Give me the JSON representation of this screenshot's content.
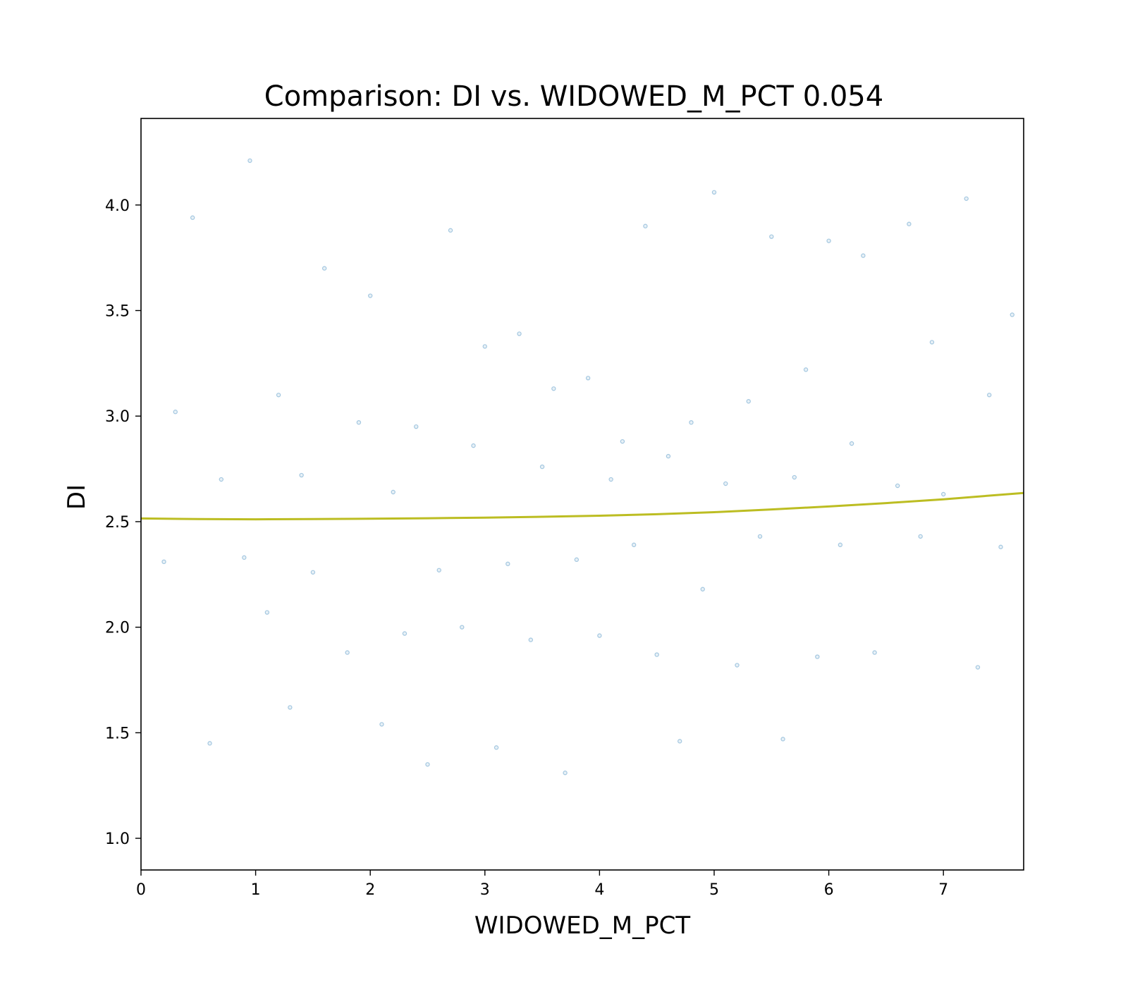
{
  "chart_data": {
    "type": "scatter",
    "title": "Comparison:  DI  vs.  WIDOWED_M_PCT  0.054",
    "xlabel": "WIDOWED_M_PCT",
    "ylabel": "DI",
    "xlim": [
      0,
      7.7
    ],
    "ylim": [
      0.85,
      4.41
    ],
    "x_ticks": [
      0,
      1,
      2,
      3,
      4,
      5,
      6,
      7
    ],
    "y_ticks": [
      1.0,
      1.5,
      2.0,
      2.5,
      3.0,
      3.5,
      4.0
    ],
    "x_tick_labels": [
      "0",
      "1",
      "2",
      "3",
      "4",
      "5",
      "6",
      "7"
    ],
    "y_tick_labels": [
      "1.0",
      "1.5",
      "2.0",
      "2.5",
      "3.0",
      "3.5",
      "4.0"
    ],
    "grid": false,
    "legend": "none",
    "colors": {
      "points": "#1f77b4",
      "trend": "#bcbd22"
    },
    "trend_line": {
      "x": [
        0,
        0.5,
        1,
        1.5,
        2,
        2.5,
        3,
        3.5,
        4,
        4.5,
        5,
        5.5,
        6,
        6.5,
        7,
        7.7
      ],
      "y": [
        2.515,
        2.512,
        2.511,
        2.512,
        2.514,
        2.516,
        2.519,
        2.523,
        2.528,
        2.535,
        2.545,
        2.558,
        2.572,
        2.588,
        2.606,
        2.636
      ]
    },
    "series": [
      {
        "x": [
          0.45,
          0.95,
          1.6,
          2.0,
          2.7,
          3.3,
          3.9,
          4.4,
          5.0,
          5.5,
          6.0,
          6.3,
          6.7,
          7.2,
          7.6,
          0.3,
          1.2,
          1.9,
          2.4,
          3.0,
          3.6,
          4.2,
          4.8,
          5.3,
          5.8,
          6.2,
          6.9,
          7.4,
          0.7,
          1.4,
          2.2,
          2.9,
          3.5,
          4.1,
          4.6,
          5.1,
          5.7,
          6.6,
          7.0,
          0.2,
          0.9,
          1.5,
          2.6,
          3.2,
          3.8,
          4.3,
          4.9,
          5.4,
          6.1,
          6.8,
          7.5,
          1.1,
          1.8,
          2.3,
          2.8,
          3.4,
          4.0,
          4.5,
          5.2,
          5.9,
          0.6,
          1.3,
          2.1,
          2.5,
          3.1,
          3.7,
          4.7,
          5.6,
          6.4,
          7.3
        ],
        "y": [
          3.94,
          4.21,
          3.7,
          3.57,
          3.88,
          3.39,
          3.18,
          3.9,
          4.06,
          3.85,
          3.83,
          3.76,
          3.91,
          4.03,
          3.48,
          3.02,
          3.1,
          2.97,
          2.95,
          3.33,
          3.13,
          2.88,
          2.97,
          3.07,
          3.22,
          2.87,
          3.35,
          3.1,
          2.7,
          2.72,
          2.64,
          2.86,
          2.76,
          2.7,
          2.81,
          2.68,
          2.71,
          2.67,
          2.63,
          2.31,
          2.33,
          2.26,
          2.27,
          2.3,
          2.32,
          2.39,
          2.18,
          2.43,
          2.39,
          2.43,
          2.38,
          2.07,
          1.88,
          1.97,
          2.0,
          1.94,
          1.96,
          1.87,
          1.82,
          1.86,
          1.45,
          1.62,
          1.54,
          1.35,
          1.43,
          1.31,
          1.46,
          1.47,
          1.88,
          1.81
        ]
      }
    ]
  }
}
